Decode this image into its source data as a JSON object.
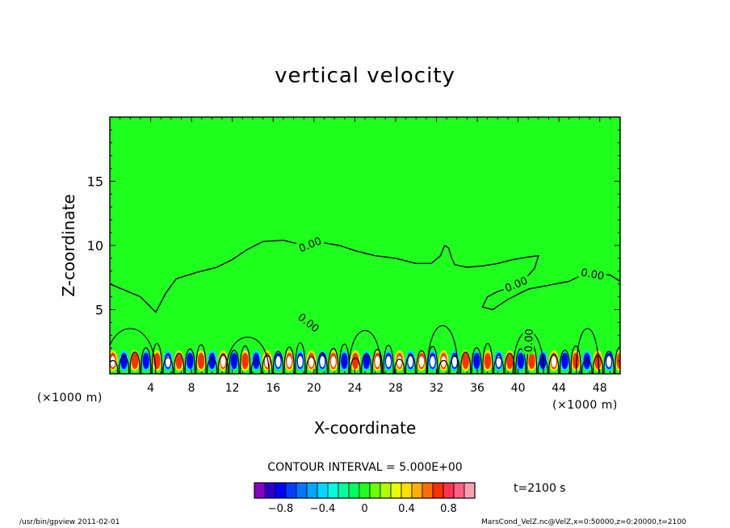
{
  "chart_data": {
    "type": "heatmap",
    "title": "vertical velocity",
    "xlabel": "X-coordinate",
    "ylabel": "Z-coordinate",
    "x_unit": "(×1000 m)",
    "x_unit_right": "(×1000 m)",
    "xlim": [
      0,
      50
    ],
    "ylim": [
      0,
      20
    ],
    "x_ticks": [
      "4",
      "8",
      "12",
      "16",
      "20",
      "24",
      "28",
      "32",
      "36",
      "40",
      "44",
      "48"
    ],
    "x_tick_values": [
      4,
      8,
      12,
      16,
      20,
      24,
      28,
      32,
      36,
      40,
      44,
      48
    ],
    "y_ticks": [
      "5",
      "10",
      "15"
    ],
    "y_tick_values": [
      5,
      10,
      15
    ],
    "background_color": "#1eff1e",
    "contour_label": "0.00",
    "contour_labels": [
      {
        "text": "0.00",
        "x": 19.5,
        "y": 4.0,
        "angle": 38
      },
      {
        "text": "0.00",
        "x": 19.6,
        "y": 10.1,
        "angle": -22
      },
      {
        "text": "0.00",
        "x": 39.8,
        "y": 7.0,
        "angle": -22
      },
      {
        "text": "0.00",
        "x": 41.0,
        "y": 2.6,
        "angle": -88
      },
      {
        "text": "0.00",
        "x": 47.3,
        "y": 7.8,
        "angle": 10
      }
    ],
    "zero_contour": [
      [
        0,
        7.0
      ],
      [
        3,
        6.0
      ],
      [
        4.5,
        4.8
      ],
      [
        5.5,
        6.3
      ],
      [
        6.5,
        7.4
      ],
      [
        8.5,
        7.9
      ],
      [
        10.5,
        8.3
      ],
      [
        12,
        8.9
      ],
      [
        13.5,
        9.7
      ],
      [
        15,
        10.3
      ],
      [
        17,
        10.4
      ],
      [
        19,
        10.0
      ],
      [
        21,
        10.2
      ],
      [
        22.5,
        10.0
      ],
      [
        24,
        9.6
      ],
      [
        26,
        9.2
      ],
      [
        28,
        9.0
      ],
      [
        30,
        8.6
      ],
      [
        31.5,
        8.6
      ],
      [
        32.4,
        9.2
      ],
      [
        32.8,
        10.0
      ],
      [
        33.2,
        9.8
      ],
      [
        33.5,
        9.0
      ],
      [
        33.8,
        8.5
      ],
      [
        35,
        8.3
      ],
      [
        36.5,
        8.4
      ],
      [
        38,
        8.6
      ],
      [
        39.5,
        8.9
      ],
      [
        41,
        9.1
      ],
      [
        42,
        9.2
      ],
      [
        41.6,
        8.2
      ],
      [
        40.8,
        7.5
      ],
      [
        39.5,
        6.8
      ],
      [
        38,
        6.4
      ],
      [
        37,
        6.0
      ],
      [
        36.5,
        5.2
      ],
      [
        37.5,
        5.0
      ],
      [
        39,
        5.8
      ],
      [
        41,
        6.6
      ],
      [
        43,
        6.9
      ],
      [
        45,
        7.2
      ],
      [
        46,
        7.6
      ],
      [
        47.5,
        7.8
      ],
      [
        49,
        7.7
      ],
      [
        50,
        7.2
      ]
    ],
    "colorbar": {
      "ticks": [
        "−0.8",
        "−0.4",
        "0",
        "0.4",
        "0.8"
      ],
      "colors": [
        "#8a00c8",
        "#2a00c8",
        "#0000ff",
        "#0040ff",
        "#0078ff",
        "#00a8ff",
        "#00d8ff",
        "#00ffe0",
        "#00ffa0",
        "#00ff60",
        "#20ff20",
        "#70ff00",
        "#b0ff00",
        "#e8ff00",
        "#ffe000",
        "#ffb000",
        "#ff7000",
        "#ff3000",
        "#ff3050",
        "#ff6080",
        "#ffa0b0"
      ]
    },
    "contour_interval": "CONTOUR INTERVAL = 5.000E+00",
    "time_label": "t=2100 s",
    "grid": false
  },
  "footer": {
    "left": "/usr/bin/gpview   2011-02-01",
    "right": "MarsCond_VelZ.nc@VelZ,x=0:50000,z=0:20000,t=2100"
  }
}
